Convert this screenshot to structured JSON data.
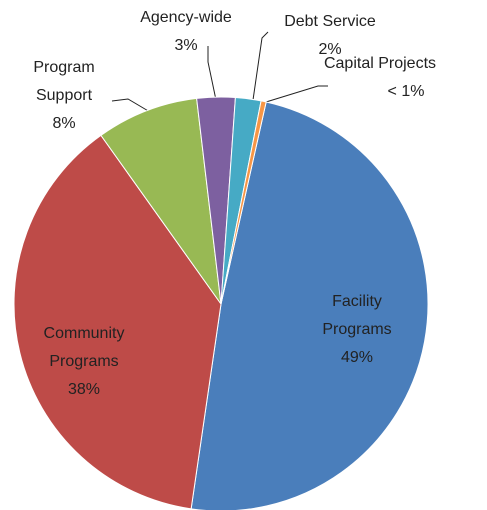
{
  "chart_data": {
    "type": "pie",
    "categories": [
      "Facility Programs",
      "Community Programs",
      "Program Support",
      "Agency-wide",
      "Debt Service",
      "Capital Projects"
    ],
    "values": [
      49,
      38,
      8,
      3,
      2,
      0.4
    ],
    "value_labels": [
      "49%",
      "38%",
      "8%",
      "3%",
      "2%",
      "< 1%"
    ],
    "colors": [
      "#4a7ebb",
      "#be4b48",
      "#98b954",
      "#7d60a0",
      "#46aac5",
      "#f79646"
    ]
  }
}
